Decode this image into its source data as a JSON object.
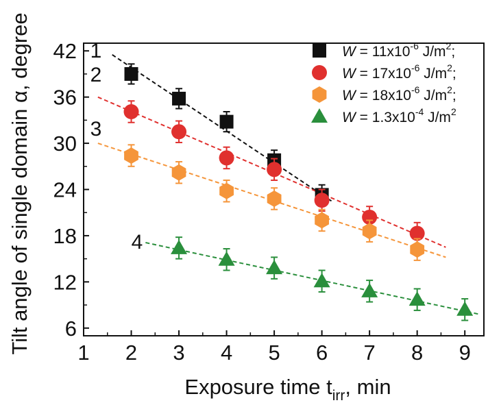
{
  "chart_data": {
    "type": "scatter",
    "xlabel_main": "Exposure time t",
    "xlabel_sub": "irr",
    "xlabel_tail": ", min",
    "ylabel": "Tilt angle of single domain α, degree",
    "xlim": [
      1,
      9.4
    ],
    "ylim": [
      5,
      43
    ],
    "x_ticks": [
      1,
      2,
      3,
      4,
      5,
      6,
      7,
      8,
      9
    ],
    "y_ticks": [
      6,
      12,
      18,
      24,
      30,
      36,
      42
    ],
    "grid": false,
    "legend_position": "top-right",
    "series": [
      {
        "id": "1",
        "curve_label": "1",
        "marker": "square",
        "color": "#111111",
        "legend": {
          "prefix": "W",
          "mid": " = 11x10",
          "exp": "-6",
          "unit": " J/m",
          "unit_exp": "2",
          "suffix": ";"
        },
        "x": [
          2,
          3,
          4,
          5,
          6
        ],
        "y": [
          39.0,
          35.8,
          32.8,
          27.8,
          23.3
        ],
        "err": [
          1.3,
          1.3,
          1.3,
          1.3,
          1.3
        ],
        "fit": {
          "x": [
            1.6,
            6.2
          ],
          "y": [
            41.5,
            22.5
          ]
        }
      },
      {
        "id": "2",
        "curve_label": "2",
        "marker": "circle",
        "color": "#e0302e",
        "legend": {
          "prefix": "W",
          "mid": " = 17x10",
          "exp": "-6",
          "unit": " J/m",
          "unit_exp": "2",
          "suffix": ";"
        },
        "x": [
          2,
          3,
          4,
          5,
          6,
          7,
          8
        ],
        "y": [
          34.1,
          31.5,
          28.1,
          26.6,
          22.6,
          20.4,
          18.3
        ],
        "err": [
          1.4,
          1.4,
          1.4,
          1.4,
          1.4,
          1.4,
          1.4
        ],
        "fit": {
          "x": [
            1.3,
            8.6
          ],
          "y": [
            36.0,
            16.5
          ]
        }
      },
      {
        "id": "3",
        "curve_label": "3",
        "marker": "hexagon",
        "color": "#f5953a",
        "legend": {
          "prefix": "W",
          "mid": " = 18x10",
          "exp": "-6",
          "unit": " J/m",
          "unit_exp": "2",
          "suffix": ";"
        },
        "x": [
          2,
          3,
          4,
          5,
          6,
          7,
          8
        ],
        "y": [
          28.4,
          26.2,
          23.8,
          22.8,
          20.0,
          18.6,
          16.2
        ],
        "err": [
          1.4,
          1.4,
          1.4,
          1.4,
          1.4,
          1.4,
          1.4
        ],
        "fit": {
          "x": [
            1.3,
            8.6
          ],
          "y": [
            30.0,
            15.2
          ]
        }
      },
      {
        "id": "4",
        "curve_label": "4",
        "marker": "triangle",
        "color": "#2a8f3c",
        "legend": {
          "prefix": "W",
          "mid": " = 1.3x10",
          "exp": "-4",
          "unit": " J/m",
          "unit_exp": "2",
          "suffix": ""
        },
        "x": [
          3,
          4,
          5,
          6,
          7,
          8,
          9
        ],
        "y": [
          16.4,
          14.9,
          13.8,
          12.1,
          10.8,
          9.7,
          8.4
        ],
        "err": [
          1.4,
          1.4,
          1.4,
          1.4,
          1.4,
          1.4,
          1.4
        ],
        "fit": {
          "x": [
            2.3,
            9.3
          ],
          "y": [
            17.1,
            7.8
          ]
        }
      }
    ]
  }
}
